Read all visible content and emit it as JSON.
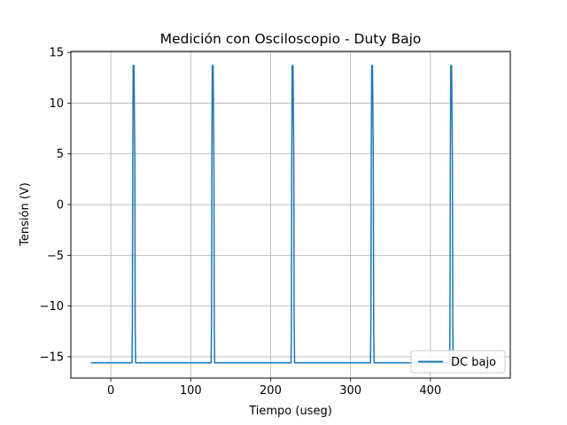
{
  "chart_data": {
    "type": "line",
    "title": "Medición con Osciloscopio  - Duty Bajo",
    "xlabel": "Tiempo (useg)",
    "ylabel": "Tensión (V)",
    "xlim": [
      -50,
      500
    ],
    "ylim": [
      -17.1,
      15.1
    ],
    "xticks": [
      0,
      100,
      200,
      300,
      400
    ],
    "yticks": [
      -15,
      -10,
      -5,
      0,
      5,
      10,
      15
    ],
    "xtick_labels": [
      "0",
      "100",
      "200",
      "300",
      "400"
    ],
    "ytick_labels": [
      "−15",
      "−10",
      "−5",
      "0",
      "5",
      "10",
      "15"
    ],
    "grid": true,
    "legend_position": "lower right",
    "series": [
      {
        "name": "DC bajo",
        "color": "#1f77b4",
        "x": [
          -25,
          26.5,
          27,
          27.5,
          28,
          29,
          30,
          30.5,
          31,
          31.5,
          125.5,
          126,
          126.5,
          127,
          128,
          129,
          129.5,
          130,
          130.5,
          225.5,
          226,
          226.5,
          227,
          228,
          229,
          229.5,
          230,
          230.5,
          325,
          325.5,
          326,
          326.5,
          327.5,
          328.5,
          329,
          329.5,
          330,
          424,
          424.5,
          425,
          425.5,
          426.5,
          427.5,
          428,
          428.5,
          429,
          435
        ],
        "y": [
          -15.6,
          -15.6,
          -12,
          5,
          13.7,
          13.7,
          5,
          -12,
          -15.6,
          -15.6,
          -15.6,
          -12,
          5,
          13.7,
          13.7,
          5,
          -12,
          -15.6,
          -15.6,
          -15.6,
          -12,
          5,
          13.7,
          13.7,
          5,
          -12,
          -15.6,
          -15.6,
          -15.6,
          -12,
          5,
          13.7,
          13.7,
          5,
          -12,
          -15.6,
          -15.6,
          -15.6,
          -12,
          5,
          13.7,
          13.7,
          5,
          -12,
          -15.6,
          -15.6,
          -15.6
        ]
      }
    ]
  }
}
